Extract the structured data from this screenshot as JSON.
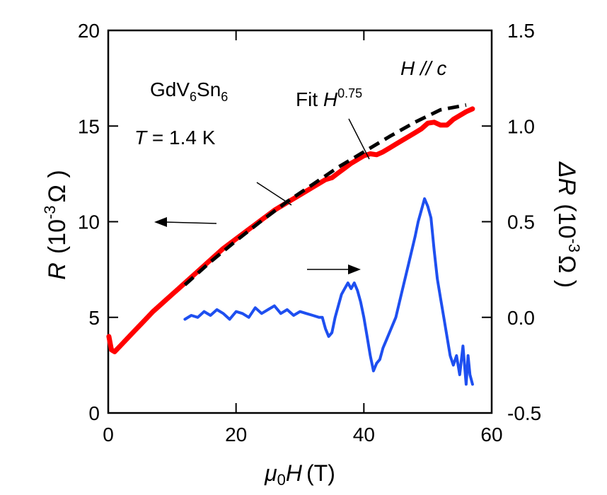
{
  "chart_data": {
    "type": "line",
    "x_axis": {
      "label_symbol": "μ",
      "label_sub": "0",
      "label_var": "H",
      "label_unit": "(T)",
      "range": [
        0,
        60
      ],
      "ticks": [
        "0",
        "20",
        "40",
        "60"
      ]
    },
    "y_axis_left": {
      "label_var": "R",
      "label_unit_open": "(10",
      "label_unit_exp": "-3",
      "label_unit_close": "Ω )",
      "range": [
        0,
        20
      ],
      "ticks": [
        "0",
        "5",
        "10",
        "15",
        "20"
      ]
    },
    "y_axis_right": {
      "label_var": "ΔR",
      "label_unit_open": "(10",
      "label_unit_exp": "-3",
      "label_unit_close": "Ω )",
      "range": [
        -0.5,
        1.5
      ],
      "ticks": [
        "-0.5",
        "0.0",
        "0.5",
        "1.0",
        "1.5"
      ]
    },
    "annotations": {
      "compound": {
        "base1": "GdV",
        "sub1": "6",
        "base2": "Sn",
        "sub2": "6"
      },
      "temperature": {
        "var": "T",
        "rest": " = 1.4 K"
      },
      "field_dir": "H // c",
      "fit": {
        "prefix": "Fit ",
        "var": "H",
        "exp": "0.75"
      }
    },
    "series": [
      {
        "axis": "left",
        "color": "#ff0000",
        "style": "solid",
        "x": [
          0.1,
          0.5,
          1,
          2,
          3,
          4,
          5,
          6,
          7,
          8,
          9,
          10,
          11,
          12,
          14,
          16,
          18,
          20,
          22,
          24,
          26,
          28,
          30,
          32,
          33,
          34,
          35,
          36,
          37,
          38,
          39,
          40,
          41,
          42,
          43,
          44,
          45,
          46,
          47,
          48,
          49,
          50,
          51,
          52,
          53,
          54,
          55,
          56,
          57
        ],
        "y": [
          4.0,
          3.3,
          3.2,
          3.55,
          3.9,
          4.25,
          4.6,
          4.95,
          5.3,
          5.6,
          5.9,
          6.2,
          6.5,
          6.8,
          7.4,
          8.0,
          8.6,
          9.1,
          9.6,
          10.1,
          10.6,
          11.0,
          11.4,
          11.8,
          12.0,
          12.2,
          12.3,
          12.55,
          12.8,
          13.05,
          13.25,
          13.45,
          13.55,
          13.5,
          13.65,
          13.85,
          14.05,
          14.25,
          14.45,
          14.65,
          14.85,
          15.15,
          15.2,
          15.05,
          15.05,
          15.35,
          15.55,
          15.75,
          15.9
        ]
      },
      {
        "axis": "left",
        "color": "#000000",
        "style": "dashed",
        "label": "Fit H0.75",
        "x": [
          12,
          16,
          20,
          24,
          28,
          32,
          36,
          40,
          44,
          48,
          52,
          56
        ],
        "y": [
          6.7,
          7.9,
          9.0,
          10.05,
          11.05,
          11.95,
          12.85,
          13.65,
          14.45,
          15.2,
          15.85,
          16.1
        ]
      },
      {
        "axis": "right",
        "color": "#1e4ff0",
        "style": "solid",
        "x": [
          12,
          13,
          14,
          15,
          16,
          17,
          18,
          19,
          20,
          21,
          22,
          23,
          24,
          25,
          26,
          27,
          28,
          29,
          30,
          31,
          32,
          33,
          33.5,
          34,
          34.5,
          35,
          35.5,
          36,
          36.5,
          37,
          37.5,
          38,
          38.5,
          39,
          39.5,
          40,
          40.5,
          41,
          41.5,
          42,
          42.5,
          43,
          43.5,
          44,
          45,
          46,
          47,
          48,
          48.5,
          49,
          49.5,
          50,
          50.5,
          51,
          51.5,
          52,
          52.5,
          53,
          53.5,
          54,
          54.5,
          55,
          55.5,
          56,
          56.3,
          56.6,
          57
        ],
        "y": [
          -0.01,
          0.01,
          0.0,
          0.03,
          0.01,
          0.04,
          0.02,
          -0.01,
          0.03,
          0.02,
          0.0,
          0.05,
          0.02,
          0.04,
          0.06,
          0.02,
          0.04,
          0.01,
          0.03,
          0.02,
          0.01,
          0.0,
          0.0,
          -0.06,
          -0.1,
          -0.08,
          0.0,
          0.06,
          0.12,
          0.15,
          0.18,
          0.15,
          0.18,
          0.14,
          0.08,
          0.0,
          -0.1,
          -0.2,
          -0.28,
          -0.24,
          -0.22,
          -0.16,
          -0.12,
          -0.08,
          0.0,
          0.14,
          0.28,
          0.42,
          0.5,
          0.56,
          0.62,
          0.58,
          0.52,
          0.35,
          0.2,
          0.1,
          0.0,
          -0.1,
          -0.2,
          -0.25,
          -0.2,
          -0.3,
          -0.15,
          -0.35,
          -0.2,
          -0.3,
          -0.35
        ]
      }
    ]
  }
}
